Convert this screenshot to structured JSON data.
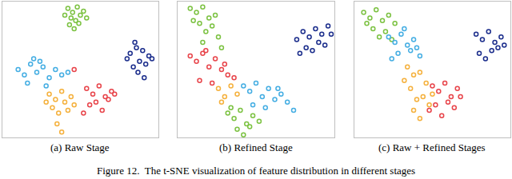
{
  "caption": "Figure 12.  The t-SNE visualization of feature distribution in different stages",
  "chart_data": [
    {
      "type": "scatter",
      "title": "(a) Raw Stage",
      "xlim": [
        0,
        100
      ],
      "ylim": [
        0,
        100
      ],
      "tick_labels": false,
      "grid": false,
      "marker": "circle-open",
      "series": [
        {
          "color": "#7cc242",
          "x": [
            42,
            45,
            48,
            50,
            44,
            52,
            47,
            40,
            49,
            54,
            46,
            43
          ],
          "y": [
            95,
            92,
            96,
            90,
            88,
            93,
            86,
            90,
            84,
            88,
            80,
            83
          ]
        },
        {
          "color": "#1c2e8c",
          "x": [
            82,
            86,
            90,
            94,
            88,
            84,
            92,
            96,
            87,
            80,
            91,
            85
          ],
          "y": [
            62,
            66,
            64,
            60,
            56,
            52,
            54,
            58,
            48,
            58,
            44,
            70
          ]
        },
        {
          "color": "#45aee3",
          "x": [
            10,
            14,
            18,
            22,
            26,
            30,
            16,
            24,
            34,
            38,
            20,
            28,
            42
          ],
          "y": [
            50,
            46,
            54,
            48,
            52,
            44,
            40,
            56,
            50,
            46,
            58,
            38,
            48
          ]
        },
        {
          "color": "#f5b13d",
          "x": [
            30,
            34,
            38,
            32,
            40,
            44,
            36,
            28,
            42,
            35,
            46,
            38
          ],
          "y": [
            32,
            28,
            34,
            22,
            26,
            30,
            18,
            26,
            20,
            10,
            24,
            4
          ]
        },
        {
          "color": "#e8454b",
          "x": [
            54,
            58,
            62,
            66,
            70,
            56,
            60,
            64,
            68,
            52,
            72,
            46
          ],
          "y": [
            36,
            32,
            38,
            30,
            34,
            24,
            26,
            20,
            28,
            18,
            32,
            50
          ]
        }
      ]
    },
    {
      "type": "scatter",
      "title": "(b) Refined Stage",
      "xlim": [
        0,
        100
      ],
      "ylim": [
        0,
        100
      ],
      "tick_labels": false,
      "grid": false,
      "marker": "circle-open",
      "series": [
        {
          "color": "#7cc242",
          "x": [
            8,
            12,
            16,
            20,
            14,
            24,
            18,
            10,
            22,
            26,
            16,
            28,
            32,
            36,
            40,
            44,
            48,
            38,
            42,
            52,
            34,
            46
          ],
          "y": [
            95,
            92,
            96,
            88,
            84,
            90,
            78,
            86,
            82,
            74,
            70,
            66,
            18,
            14,
            20,
            10,
            16,
            6,
            2,
            12,
            22,
            8
          ]
        },
        {
          "color": "#1c2e8c",
          "x": [
            76,
            80,
            84,
            88,
            92,
            96,
            82,
            86,
            90,
            94,
            78,
            98
          ],
          "y": [
            72,
            78,
            74,
            80,
            76,
            82,
            66,
            64,
            70,
            68,
            62,
            76
          ]
        },
        {
          "color": "#45aee3",
          "x": [
            42,
            46,
            50,
            54,
            58,
            62,
            66,
            70,
            48,
            56,
            64,
            74
          ],
          "y": [
            38,
            34,
            40,
            30,
            36,
            28,
            32,
            26,
            24,
            22,
            36,
            20
          ]
        },
        {
          "color": "#f5b13d",
          "x": [
            26,
            30,
            34,
            38,
            28
          ],
          "y": [
            36,
            30,
            38,
            32,
            26
          ]
        },
        {
          "color": "#e8454b",
          "x": [
            8,
            12,
            16,
            20,
            24,
            28,
            32,
            14,
            22,
            30,
            36,
            18
          ],
          "y": [
            60,
            56,
            62,
            52,
            58,
            50,
            46,
            42,
            40,
            54,
            44,
            64
          ]
        }
      ]
    },
    {
      "type": "scatter",
      "title": "(c) Raw + Refined Stages",
      "xlim": [
        0,
        100
      ],
      "ylim": [
        0,
        100
      ],
      "tick_labels": false,
      "grid": false,
      "marker": "circle-open",
      "series": [
        {
          "color": "#7cc242",
          "x": [
            6,
            10,
            14,
            18,
            22,
            12,
            20,
            26,
            16,
            8,
            24
          ],
          "y": [
            92,
            88,
            94,
            86,
            90,
            80,
            78,
            84,
            74,
            84,
            72
          ]
        },
        {
          "color": "#1c2e8c",
          "x": [
            78,
            82,
            86,
            90,
            94,
            80,
            88,
            92,
            84,
            96
          ],
          "y": [
            76,
            72,
            78,
            70,
            74,
            62,
            64,
            66,
            58,
            68
          ]
        },
        {
          "color": "#45aee3",
          "x": [
            22,
            26,
            30,
            34,
            38,
            28,
            36,
            40,
            24,
            32,
            42
          ],
          "y": [
            74,
            70,
            76,
            68,
            72,
            62,
            64,
            66,
            58,
            80,
            60
          ]
        },
        {
          "color": "#f5b13d",
          "x": [
            34,
            38,
            42,
            46,
            36,
            44,
            40,
            48,
            38,
            42,
            50,
            32
          ],
          "y": [
            52,
            46,
            48,
            40,
            36,
            30,
            28,
            24,
            20,
            14,
            32,
            42
          ]
        },
        {
          "color": "#e8454b",
          "x": [
            50,
            54,
            58,
            62,
            66,
            52,
            60,
            64,
            56,
            48,
            68
          ],
          "y": [
            38,
            34,
            40,
            30,
            36,
            24,
            26,
            22,
            16,
            20,
            30
          ]
        }
      ]
    }
  ]
}
